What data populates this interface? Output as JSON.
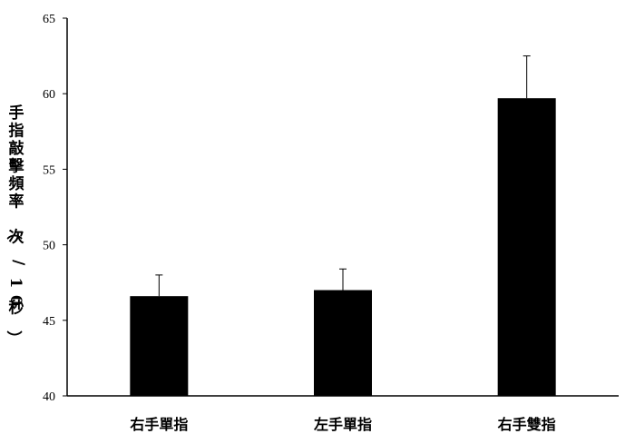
{
  "chart_data": {
    "type": "bar",
    "categories": [
      "右手單指",
      "左手單指",
      "右手雙指"
    ],
    "values": [
      46.6,
      47.0,
      59.7
    ],
    "error_upper": [
      48.0,
      48.4,
      62.5
    ],
    "ylabel": "手指敲擊頻率（次/10秒）",
    "ylim": [
      40,
      65
    ],
    "yticks": [
      40,
      45,
      50,
      55,
      60,
      65
    ],
    "ytick_labels": [
      "40",
      "45",
      "50",
      "55",
      "60",
      "65"
    ],
    "grid": false,
    "legend": "none",
    "bar_color": "#000000"
  }
}
